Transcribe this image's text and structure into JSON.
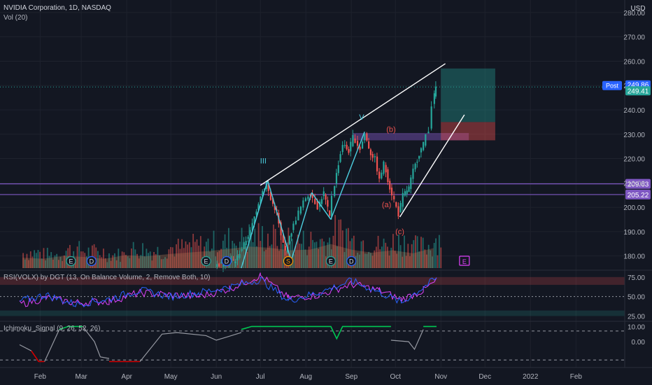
{
  "header": {
    "symbol_line": "NVIDIA Corporation, 1D, NASDAQ",
    "volume_label": "Vol (20)",
    "currency": "USD"
  },
  "indicators": {
    "rsi_label": "RSI(VOLX) by DGT (13, On Balance Volume, 2, Remove Both, 10)",
    "ichimoku_label": "Ichimoku_Signal (9, 26, 52, 26)"
  },
  "colors": {
    "background": "#131722",
    "grid": "#1e222d",
    "axis_text": "#b2b5be",
    "up": "#26a69a",
    "down": "#ef5350",
    "wedge_line": "#ffffff",
    "wave_line": "#4dd0e1",
    "level_line": "#7e57c2",
    "wave_label": "#ef5350",
    "post_badge": "#2962ff",
    "price_badge": "#26a69a",
    "ichimoku_up": "#00c853",
    "ichimoku_down": "#d50000",
    "ichimoku_neutral": "#9598a1",
    "rsi_line_1": "#2962ff",
    "rsi_line_2": "#e040fb"
  },
  "chart_data": {
    "type": "candlestick",
    "title": "NVIDIA Corporation, 1D, NASDAQ",
    "x_axis": {
      "tick_labels": [
        "Feb",
        "Mar",
        "Apr",
        "May",
        "Jun",
        "Jul",
        "Aug",
        "Sep",
        "Oct",
        "Nov",
        "Dec",
        "2022",
        "Feb"
      ],
      "start": "2021-01-18",
      "end": "2022-02-28"
    },
    "price_axis": {
      "tick_labels": [
        "280.00",
        "270.00",
        "260.00",
        "250.00",
        "240.00",
        "230.00",
        "220.00",
        "210.00",
        "200.00",
        "190.00",
        "180.00"
      ],
      "range": [
        175,
        284
      ]
    },
    "price_series": [
      {
        "date": "2021-06-01",
        "close": 176
      },
      {
        "date": "2021-06-15",
        "close": 178
      },
      {
        "date": "2021-06-25",
        "close": 190
      },
      {
        "date": "2021-07-02",
        "close": 205
      },
      {
        "date": "2021-07-06",
        "close": 210
      },
      {
        "date": "2021-07-09",
        "close": 203
      },
      {
        "date": "2021-07-13",
        "close": 198
      },
      {
        "date": "2021-07-16",
        "close": 188
      },
      {
        "date": "2021-07-19",
        "close": 182
      },
      {
        "date": "2021-07-23",
        "close": 190
      },
      {
        "date": "2021-07-28",
        "close": 198
      },
      {
        "date": "2021-08-02",
        "close": 204
      },
      {
        "date": "2021-08-05",
        "close": 206
      },
      {
        "date": "2021-08-10",
        "close": 200
      },
      {
        "date": "2021-08-14",
        "close": 206
      },
      {
        "date": "2021-08-18",
        "close": 196
      },
      {
        "date": "2021-08-20",
        "close": 205
      },
      {
        "date": "2021-08-24",
        "close": 218
      },
      {
        "date": "2021-08-27",
        "close": 226
      },
      {
        "date": "2021-08-31",
        "close": 223
      },
      {
        "date": "2021-09-03",
        "close": 229
      },
      {
        "date": "2021-09-08",
        "close": 224
      },
      {
        "date": "2021-09-11",
        "close": 230
      },
      {
        "date": "2021-09-15",
        "close": 222
      },
      {
        "date": "2021-09-18",
        "close": 220
      },
      {
        "date": "2021-09-21",
        "close": 211
      },
      {
        "date": "2021-09-24",
        "close": 218
      },
      {
        "date": "2021-09-28",
        "close": 208
      },
      {
        "date": "2021-10-01",
        "close": 203
      },
      {
        "date": "2021-10-04",
        "close": 197
      },
      {
        "date": "2021-10-07",
        "close": 205
      },
      {
        "date": "2021-10-11",
        "close": 208
      },
      {
        "date": "2021-10-14",
        "close": 215
      },
      {
        "date": "2021-10-18",
        "close": 222
      },
      {
        "date": "2021-10-21",
        "close": 226
      },
      {
        "date": "2021-10-23",
        "close": 230
      },
      {
        "date": "2021-10-25",
        "close": 232
      },
      {
        "date": "2021-10-27",
        "close": 242
      },
      {
        "date": "2021-10-28",
        "close": 246
      },
      {
        "date": "2021-10-29",
        "close": 249.4
      }
    ],
    "volume_series": [
      {
        "date": "2021-01-20",
        "up": false,
        "value": 0.34
      },
      {
        "date": "2021-02-03",
        "up": true,
        "value": 0.3
      },
      {
        "date": "2021-02-17",
        "up": false,
        "value": 0.4
      },
      {
        "date": "2021-03-03",
        "up": false,
        "value": 0.36
      },
      {
        "date": "2021-03-17",
        "up": true,
        "value": 0.3
      },
      {
        "date": "2021-03-31",
        "up": false,
        "value": 0.42
      },
      {
        "date": "2021-04-14",
        "up": true,
        "value": 0.38
      },
      {
        "date": "2021-04-28",
        "up": false,
        "value": 0.45
      },
      {
        "date": "2021-05-12",
        "up": false,
        "value": 0.5
      },
      {
        "date": "2021-05-26",
        "up": true,
        "value": 0.55
      },
      {
        "date": "2021-06-09",
        "up": true,
        "value": 0.62
      },
      {
        "date": "2021-06-23",
        "up": true,
        "value": 0.7
      },
      {
        "date": "2021-07-07",
        "up": false,
        "value": 0.66
      },
      {
        "date": "2021-07-21",
        "up": true,
        "value": 0.58
      },
      {
        "date": "2021-08-04",
        "up": false,
        "value": 0.6
      },
      {
        "date": "2021-08-18",
        "up": false,
        "value": 0.78
      },
      {
        "date": "2021-09-01",
        "up": true,
        "value": 0.6
      },
      {
        "date": "2021-09-15",
        "up": false,
        "value": 0.5
      },
      {
        "date": "2021-09-29",
        "up": false,
        "value": 0.58
      },
      {
        "date": "2021-10-13",
        "up": true,
        "value": 0.48
      },
      {
        "date": "2021-10-27",
        "up": true,
        "value": 0.65
      }
    ],
    "wedge_lines": [
      {
        "from": {
          "date": "2021-07-01",
          "price": 209
        },
        "to": {
          "date": "2021-11-04",
          "price": 259
        }
      },
      {
        "from": {
          "date": "2021-10-04",
          "price": 196
        },
        "to": {
          "date": "2021-11-17",
          "price": 238
        }
      }
    ],
    "wave_lines": [
      {
        "from": {
          "date": "2021-06-18",
          "price": 175
        },
        "to": {
          "date": "2021-07-06",
          "price": 211
        }
      },
      {
        "from": {
          "date": "2021-07-06",
          "price": 211
        },
        "to": {
          "date": "2021-07-22",
          "price": 178
        }
      },
      {
        "from": {
          "date": "2021-07-22",
          "price": 178
        },
        "to": {
          "date": "2021-08-05",
          "price": 206
        }
      },
      {
        "from": {
          "date": "2021-08-05",
          "price": 206
        },
        "to": {
          "date": "2021-08-18",
          "price": 195
        }
      },
      {
        "from": {
          "date": "2021-08-18",
          "price": 195
        },
        "to": {
          "date": "2021-09-10",
          "price": 231
        }
      }
    ],
    "wave_labels": [
      {
        "text": "III",
        "date": "2021-07-03",
        "price": 218,
        "color": "wave_line"
      },
      {
        "text": "V",
        "date": "2021-09-08",
        "price": 236,
        "color": "wave_line"
      },
      {
        "text": "(b)",
        "date": "2021-09-28",
        "price": 231,
        "color": "wave_label"
      },
      {
        "text": "(a)",
        "date": "2021-09-25",
        "price": 200,
        "color": "wave_label"
      },
      {
        "text": "(c)",
        "date": "2021-10-04",
        "price": 189,
        "color": "wave_label"
      }
    ],
    "horizontal_levels": [
      {
        "price": 209.63,
        "label": "209.63"
      },
      {
        "price": 205.22,
        "label": "205.22"
      }
    ],
    "price_markers": [
      {
        "label": "249.86",
        "tag": "Post",
        "price": 249.86
      },
      {
        "label": "249.41",
        "price": 249.41
      }
    ],
    "position_tool": {
      "entry": 235,
      "target": 257,
      "stop": 227.5,
      "from": "2021-11-01",
      "to": "2021-12-08"
    },
    "event_markers": [
      {
        "date": "2021-02-22",
        "label": "E"
      },
      {
        "date": "2021-03-08",
        "label": "D"
      },
      {
        "date": "2021-05-25",
        "label": "E"
      },
      {
        "date": "2021-06-08",
        "label": "D"
      },
      {
        "date": "2021-07-20",
        "label": "S"
      },
      {
        "date": "2021-08-18",
        "label": "E"
      },
      {
        "date": "2021-09-01",
        "label": "D"
      },
      {
        "date": "2021-11-17",
        "label": "E"
      }
    ],
    "rsi": {
      "title": "RSI(VOLX) by DGT (13, On Balance Volume, 2, Remove Both, 10)",
      "tick_labels": [
        "75.00",
        "50.00",
        "25.00"
      ],
      "range": [
        20,
        82
      ],
      "band": [
        65,
        75
      ],
      "line_1": [
        {
          "date": "2021-01-18",
          "value": 44
        },
        {
          "date": "2021-02-05",
          "value": 52
        },
        {
          "date": "2021-02-25",
          "value": 40
        },
        {
          "date": "2021-03-20",
          "value": 47
        },
        {
          "date": "2021-04-10",
          "value": 58
        },
        {
          "date": "2021-05-01",
          "value": 50
        },
        {
          "date": "2021-05-20",
          "value": 55
        },
        {
          "date": "2021-06-10",
          "value": 62
        },
        {
          "date": "2021-07-01",
          "value": 72
        },
        {
          "date": "2021-07-20",
          "value": 45
        },
        {
          "date": "2021-08-10",
          "value": 55
        },
        {
          "date": "2021-09-01",
          "value": 70
        },
        {
          "date": "2021-09-20",
          "value": 56
        },
        {
          "date": "2021-10-05",
          "value": 42
        },
        {
          "date": "2021-10-20",
          "value": 62
        },
        {
          "date": "2021-10-29",
          "value": 73
        }
      ],
      "line_2": [
        {
          "date": "2021-01-18",
          "value": 40
        },
        {
          "date": "2021-02-05",
          "value": 48
        },
        {
          "date": "2021-02-25",
          "value": 42
        },
        {
          "date": "2021-03-20",
          "value": 44
        },
        {
          "date": "2021-04-10",
          "value": 55
        },
        {
          "date": "2021-05-01",
          "value": 52
        },
        {
          "date": "2021-05-20",
          "value": 50
        },
        {
          "date": "2021-06-10",
          "value": 60
        },
        {
          "date": "2021-07-01",
          "value": 77
        },
        {
          "date": "2021-07-20",
          "value": 48
        },
        {
          "date": "2021-08-10",
          "value": 52
        },
        {
          "date": "2021-09-01",
          "value": 66
        },
        {
          "date": "2021-09-20",
          "value": 58
        },
        {
          "date": "2021-10-05",
          "value": 46
        },
        {
          "date": "2021-10-20",
          "value": 58
        },
        {
          "date": "2021-10-29",
          "value": 70
        }
      ]
    },
    "ichimoku": {
      "title": "Ichimoku_Signal (9, 26, 52, 26)",
      "tick_labels": [
        "10.00",
        "0.00"
      ],
      "range": [
        -16,
        12
      ],
      "dashed_levels": [
        7,
        -12
      ],
      "segments": [
        {
          "state": "neutral",
          "points": [
            {
              "date": "2021-01-18",
              "value": -2
            },
            {
              "date": "2021-01-26",
              "value": -6
            }
          ]
        },
        {
          "state": "down",
          "points": [
            {
              "date": "2021-01-26",
              "value": -6
            },
            {
              "date": "2021-01-31",
              "value": -13
            },
            {
              "date": "2021-02-04",
              "value": -13
            }
          ]
        },
        {
          "state": "neutral",
          "points": [
            {
              "date": "2021-02-04",
              "value": -13
            },
            {
              "date": "2021-02-14",
              "value": 8
            }
          ]
        },
        {
          "state": "up",
          "points": [
            {
              "date": "2021-02-14",
              "value": 8
            },
            {
              "date": "2021-02-20",
              "value": 10
            },
            {
              "date": "2021-03-02",
              "value": 10
            }
          ]
        },
        {
          "state": "neutral",
          "points": [
            {
              "date": "2021-03-02",
              "value": 10
            },
            {
              "date": "2021-03-10",
              "value": 0
            },
            {
              "date": "2021-03-14",
              "value": -10
            },
            {
              "date": "2021-03-20",
              "value": -11
            }
          ]
        },
        {
          "state": "down",
          "points": [
            {
              "date": "2021-03-20",
              "value": -13
            },
            {
              "date": "2021-04-10",
              "value": -13
            }
          ]
        },
        {
          "state": "neutral",
          "points": [
            {
              "date": "2021-04-10",
              "value": -13
            },
            {
              "date": "2021-04-25",
              "value": 5
            },
            {
              "date": "2021-05-05",
              "value": 6
            },
            {
              "date": "2021-05-25",
              "value": 4
            },
            {
              "date": "2021-06-01",
              "value": 1
            },
            {
              "date": "2021-06-08",
              "value": 3
            },
            {
              "date": "2021-06-18",
              "value": 6
            }
          ]
        },
        {
          "state": "up",
          "points": [
            {
              "date": "2021-06-18",
              "value": 8
            },
            {
              "date": "2021-06-25",
              "value": 10
            },
            {
              "date": "2021-08-18",
              "value": 10
            },
            {
              "date": "2021-08-22",
              "value": 2
            },
            {
              "date": "2021-08-26",
              "value": 10
            },
            {
              "date": "2021-09-28",
              "value": 10
            }
          ]
        },
        {
          "state": "neutral",
          "points": [
            {
              "date": "2021-09-28",
              "value": 1
            },
            {
              "date": "2021-10-10",
              "value": 0
            },
            {
              "date": "2021-10-14",
              "value": -5
            },
            {
              "date": "2021-10-20",
              "value": 8
            }
          ]
        },
        {
          "state": "up",
          "points": [
            {
              "date": "2021-10-20",
              "value": 10
            },
            {
              "date": "2021-10-29",
              "value": 10
            }
          ]
        }
      ]
    }
  }
}
